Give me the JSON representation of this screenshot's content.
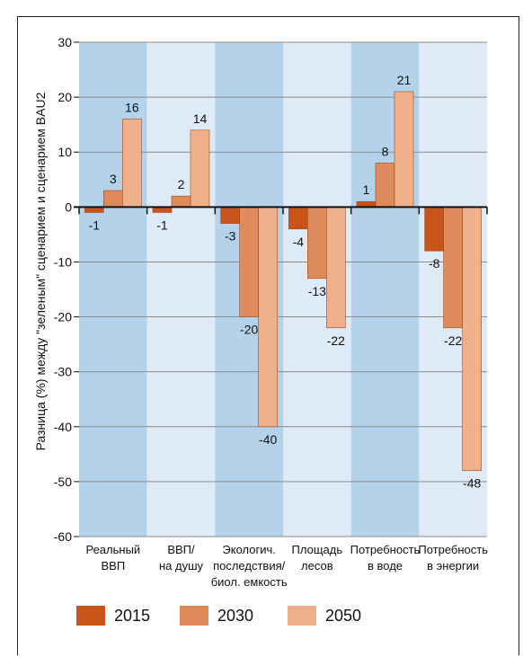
{
  "chart_data": {
    "type": "bar",
    "ylabel": "Разница (%) между \"зеленым\" сценарием и  сценарием BAU2",
    "ylim": [
      -60,
      30
    ],
    "yticks": [
      30,
      20,
      10,
      0,
      -10,
      -20,
      -30,
      -40,
      -50,
      -60
    ],
    "categories": [
      [
        "Реальный",
        "ВВП"
      ],
      [
        "ВВП/",
        "на душу"
      ],
      [
        "Экологич.",
        "последствия/",
        "биол. емкость"
      ],
      [
        "Площадь",
        "лесов"
      ],
      [
        "Потребность",
        "в воде"
      ],
      [
        "Потребность",
        "в энергии"
      ]
    ],
    "series": [
      {
        "name": "2015",
        "color": "#c9541a",
        "values": [
          -1,
          -1,
          -3,
          -4,
          1,
          -8
        ]
      },
      {
        "name": "2030",
        "color": "#de8a5a",
        "values": [
          3,
          2,
          -20,
          -13,
          8,
          -22
        ]
      },
      {
        "name": "2050",
        "color": "#f0b08c",
        "values": [
          16,
          14,
          -40,
          -22,
          21,
          -48
        ]
      }
    ],
    "band_colors": [
      "#b4d3ea",
      "#deeaf6"
    ],
    "grid": true,
    "legend_position": "bottom"
  }
}
